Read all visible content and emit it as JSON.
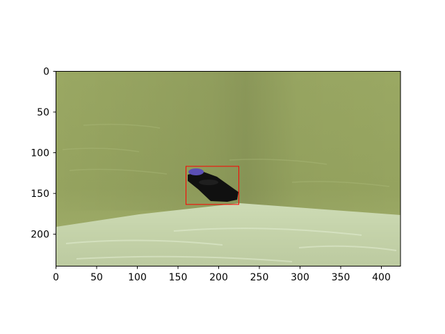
{
  "figure": {
    "x_ticks": [
      "0",
      "50",
      "100",
      "150",
      "200",
      "250",
      "300",
      "350",
      "400"
    ],
    "y_ticks": [
      "0",
      "50",
      "100",
      "150",
      "200"
    ],
    "x_range": [
      0,
      424
    ],
    "y_range": [
      0,
      240
    ]
  },
  "scene": {
    "description_free": true,
    "wall_color": "#97a563",
    "floor_color": "#c7d5ad",
    "object_color": "#111111",
    "object_cap_color": "#5b4fb5"
  },
  "annotation": {
    "box_color": "#ff0000",
    "box_data": {
      "x_min": 160,
      "y_min": 117,
      "x_max": 225,
      "y_max": 164
    }
  }
}
